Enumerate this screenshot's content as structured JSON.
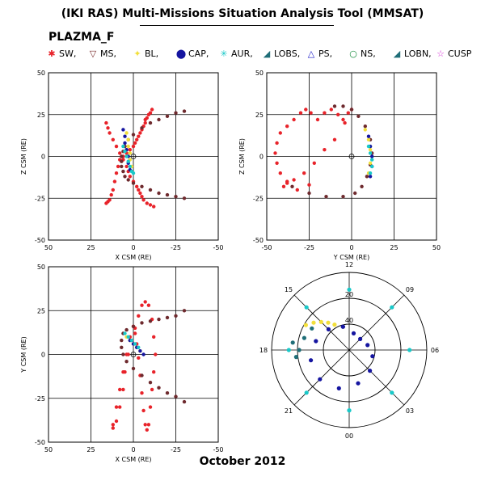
{
  "header": {
    "title": "(IKI RAS) Multi-Missions Situation Analysis Tool (MMSAT)",
    "subtitle": "PLAZMA_F",
    "date": "October 2012"
  },
  "legend": [
    {
      "label": "SW,",
      "symbol": "✱",
      "color": "#e8232a"
    },
    {
      "label": "MS,",
      "symbol": "▽",
      "color": "#7a2b2b"
    },
    {
      "label": "BL,",
      "symbol": "✦",
      "color": "#f2df3a"
    },
    {
      "label": "CAP,",
      "symbol": "⬤",
      "color": "#1515a0"
    },
    {
      "label": "AUR,",
      "symbol": "✳",
      "color": "#19c9c9"
    },
    {
      "label": "LOBS,",
      "symbol": "◢",
      "color": "#1f6e78"
    },
    {
      "label": "PS,",
      "symbol": "△",
      "color": "#1a1ac8"
    },
    {
      "label": "NS,",
      "symbol": "○",
      "color": "#138a3a"
    },
    {
      "label": "LOBN,",
      "symbol": "◢",
      "color": "#1f6e78"
    },
    {
      "label": "CUSP",
      "symbol": "☆",
      "color": "#d52bd5"
    }
  ],
  "chart_data": [
    {
      "type": "scatter",
      "panel": "X-Z",
      "title": "",
      "xlabel": "X CSM (RE)",
      "ylabel": "Z CSM (RE)",
      "xlim": [
        50,
        -50
      ],
      "ylim": [
        -50,
        50
      ],
      "xticks": [
        "50",
        "25",
        "0",
        "-25",
        "-50"
      ],
      "yticks": [
        "-50",
        "-25",
        "0",
        "25",
        "50"
      ],
      "grid": true,
      "series": [
        {
          "name": "SW",
          "color": "#e8232a",
          "x": [
            16,
            15,
            14,
            12,
            10,
            8,
            6,
            4,
            3,
            2,
            0,
            -2,
            -3,
            -4,
            -5,
            -6,
            -8,
            -10,
            -12,
            -11,
            -10,
            -9,
            -8,
            -7,
            -7,
            -6,
            -5,
            -4,
            -3,
            -2,
            -1,
            0,
            2,
            4,
            6,
            8,
            9,
            10,
            11,
            12,
            13,
            14,
            15,
            16
          ],
          "y": [
            20,
            17,
            14,
            10,
            6,
            2,
            -2,
            -6,
            -9,
            -12,
            -15,
            -18,
            -20,
            -22,
            -24,
            -26,
            -28,
            -29,
            -30,
            28,
            26,
            25,
            23,
            22,
            20,
            18,
            16,
            14,
            12,
            10,
            8,
            6,
            4,
            2,
            0,
            -2,
            -6,
            -10,
            -15,
            -20,
            -23,
            -26,
            -27,
            -28
          ]
        },
        {
          "name": "MS",
          "color": "#6e2a2e",
          "x": [
            -30,
            -25,
            -20,
            -15,
            -10,
            -5,
            0,
            3,
            5,
            6,
            7,
            7,
            7,
            6,
            5,
            3,
            0,
            -5,
            -10,
            -15,
            -20,
            -25,
            -30
          ],
          "y": [
            27,
            26,
            24,
            22,
            20,
            17,
            13,
            10,
            6,
            3,
            0,
            -3,
            -6,
            -9,
            -12,
            -14,
            -16,
            -18,
            -20,
            -22,
            -23,
            -24,
            -25
          ]
        },
        {
          "name": "BL",
          "color": "#f2df3a",
          "x": [
            4,
            3,
            3,
            2,
            2,
            1
          ],
          "y": [
            14,
            10,
            6,
            2,
            -2,
            -6
          ]
        },
        {
          "name": "CAP",
          "color": "#1515a0",
          "x": [
            6,
            5,
            5,
            4,
            3,
            3,
            2
          ],
          "y": [
            16,
            12,
            8,
            4,
            0,
            -4,
            -8
          ]
        },
        {
          "name": "AUR",
          "color": "#19c9c9",
          "x": [
            6,
            5,
            4,
            3,
            2,
            1,
            0
          ],
          "y": [
            6,
            3,
            0,
            -3,
            -6,
            -9,
            -10
          ]
        }
      ]
    },
    {
      "type": "scatter",
      "panel": "Y-Z",
      "title": "",
      "xlabel": "Y CSM (RE)",
      "ylabel": "Z CSM (RE)",
      "xlim": [
        -50,
        50
      ],
      "ylim": [
        -50,
        50
      ],
      "xticks": [
        "-50",
        "-25",
        "0",
        "25",
        "50"
      ],
      "yticks": [
        "-50",
        "-25",
        "0",
        "25",
        "50"
      ],
      "grid": true,
      "series": [
        {
          "name": "SW",
          "color": "#e8232a",
          "x": [
            -25,
            -32,
            -38,
            -42,
            -44,
            -45,
            -44,
            -42,
            -38,
            -34,
            -30,
            -27,
            -24,
            -20,
            -16,
            -12,
            -8,
            -5,
            -2,
            0,
            -4,
            -10,
            -16,
            -22,
            -28,
            -34,
            -38,
            -40
          ],
          "y": [
            -17,
            -20,
            -15,
            -10,
            -4,
            2,
            8,
            14,
            18,
            22,
            26,
            28,
            26,
            22,
            26,
            28,
            25,
            22,
            26,
            28,
            20,
            10,
            4,
            -4,
            -10,
            -14,
            -16,
            -18
          ]
        },
        {
          "name": "MS",
          "color": "#6e2a2e",
          "x": [
            -35,
            -25,
            -15,
            -5,
            2,
            6,
            9,
            11,
            12,
            11,
            8,
            4,
            0,
            -5,
            -10
          ],
          "y": [
            -18,
            -22,
            -24,
            -24,
            -22,
            -18,
            -12,
            -5,
            2,
            10,
            18,
            24,
            28,
            30,
            30
          ]
        },
        {
          "name": "BL",
          "color": "#f2df3a",
          "x": [
            8,
            10,
            11,
            11,
            10
          ],
          "y": [
            16,
            10,
            4,
            -4,
            -10
          ]
        },
        {
          "name": "CAP",
          "color": "#1515a0",
          "x": [
            10,
            11,
            12,
            12,
            11
          ],
          "y": [
            12,
            6,
            0,
            -6,
            -12
          ]
        },
        {
          "name": "AUR",
          "color": "#19c9c9",
          "x": [
            10,
            11,
            12,
            12,
            11
          ],
          "y": [
            6,
            2,
            -2,
            -6,
            -10
          ]
        }
      ]
    },
    {
      "type": "scatter",
      "panel": "X-Y",
      "title": "",
      "xlabel": "X CSM (RE)",
      "ylabel": "Y CSM (RE)",
      "xlim": [
        50,
        -50
      ],
      "ylim": [
        -50,
        50
      ],
      "xticks": [
        "50",
        "25",
        "0",
        "-25",
        "-50"
      ],
      "yticks": [
        "-50",
        "-25",
        "0",
        "25",
        "50"
      ],
      "grid": true,
      "series": [
        {
          "name": "SW",
          "color": "#e8232a",
          "x": [
            12,
            10,
            8,
            6,
            5,
            3,
            1,
            -1,
            -3,
            -5,
            -7,
            -9,
            -11,
            -12,
            -13,
            -12,
            -11,
            -10,
            -9,
            -8,
            -7,
            -6,
            -5,
            -4,
            -3,
            -2,
            -1,
            0,
            2,
            4,
            6,
            8,
            10,
            12
          ],
          "y": [
            -42,
            -38,
            -30,
            -20,
            -10,
            0,
            8,
            15,
            22,
            28,
            30,
            28,
            20,
            10,
            0,
            -10,
            -20,
            -30,
            -40,
            -43,
            -40,
            -32,
            -22,
            -12,
            -2,
            6,
            12,
            16,
            10,
            0,
            -10,
            -20,
            -30,
            -40
          ]
        },
        {
          "name": "MS",
          "color": "#6e2a2e",
          "x": [
            -30,
            -25,
            -20,
            -15,
            -10,
            -5,
            0,
            4,
            6,
            7,
            7,
            6,
            4,
            0,
            -5,
            -10,
            -15,
            -20,
            -25,
            -30
          ],
          "y": [
            -27,
            -24,
            -22,
            -19,
            -16,
            -12,
            -8,
            -4,
            0,
            4,
            8,
            12,
            14,
            16,
            18,
            19,
            20,
            21,
            22,
            25
          ]
        },
        {
          "name": "BL",
          "color": "#f2df3a",
          "x": [
            -4,
            -2,
            0,
            2,
            4
          ],
          "y": [
            2,
            4,
            6,
            8,
            10
          ]
        },
        {
          "name": "CAP",
          "color": "#1515a0",
          "x": [
            -6,
            -4,
            -2,
            0,
            2
          ],
          "y": [
            0,
            2,
            4,
            6,
            8
          ]
        },
        {
          "name": "AUR",
          "color": "#19c9c9",
          "x": [
            -3,
            -1,
            1,
            3,
            5
          ],
          "y": [
            4,
            6,
            8,
            10,
            12
          ]
        }
      ]
    },
    {
      "type": "scatter",
      "panel": "polar MLT",
      "title": "",
      "angle_labels": [
        "12",
        "09",
        "06",
        "03",
        "00",
        "21",
        "18",
        "15"
      ],
      "radial_labels": [
        "20",
        "40"
      ],
      "series": [
        {
          "name": "AUR",
          "color": "#19c9c9",
          "mlt": [
            0,
            3,
            6,
            9,
            12,
            15,
            18,
            21,
            24
          ],
          "r": [
            70,
            70,
            70,
            70,
            70,
            70,
            70,
            70,
            70
          ]
        },
        {
          "name": "CAP",
          "color": "#1515a0",
          "mlt": [
            13,
            15,
            17,
            19,
            21,
            23,
            1,
            3,
            5,
            7,
            9,
            11,
            13
          ],
          "r": [
            28,
            34,
            40,
            46,
            48,
            46,
            40,
            34,
            28,
            22,
            18,
            20,
            28
          ]
        },
        {
          "name": "BL",
          "color": "#f2df3a",
          "mlt": [
            14,
            14.5,
            15,
            15.5,
            16
          ],
          "r": [
            34,
            40,
            46,
            52,
            58
          ]
        },
        {
          "name": "LOBS",
          "color": "#1f6e78",
          "mlt": [
            16,
            17,
            18,
            18.5,
            17.5
          ],
          "r": [
            50,
            54,
            58,
            62,
            66
          ]
        }
      ]
    }
  ]
}
